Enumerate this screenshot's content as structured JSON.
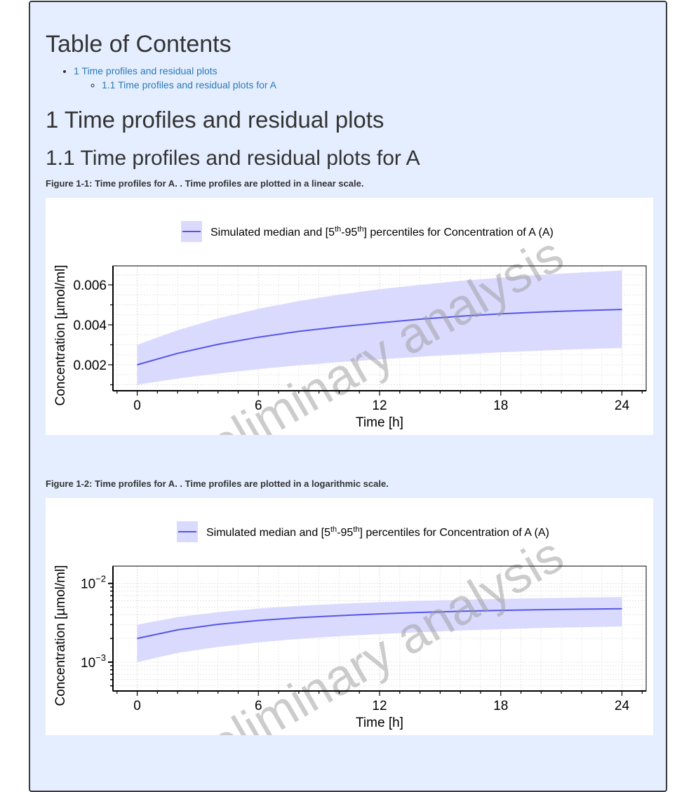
{
  "toc": {
    "title": "Table of Contents",
    "items": [
      {
        "label": "1 Time profiles and residual plots",
        "children": [
          {
            "label": "1.1 Time profiles and residual plots for A"
          }
        ]
      }
    ]
  },
  "section": {
    "h1": "1 Time profiles and residual plots",
    "h2": "1.1 Time profiles and residual plots for A"
  },
  "figures": [
    {
      "caption": "Figure 1-1: Time profiles for A. . Time profiles are plotted in a linear scale."
    },
    {
      "caption": "Figure 1-2: Time profiles for A. . Time profiles are plotted in a logarithmic scale."
    }
  ],
  "watermark": "Preliminary analysis",
  "colors": {
    "line": "#5656e6",
    "band": "#dadaff",
    "background": "#e5eeff",
    "link": "#2a7ab8"
  },
  "chart_data": [
    {
      "type": "line",
      "scale": "linear",
      "xlabel": "Time [h]",
      "ylabel": "Concentration [µmol/ml]",
      "legend": {
        "text_main": "Simulated median and [5",
        "sup1": "th",
        "text_mid": "-95",
        "sup2": "th",
        "text_end": "] percentiles for Concentration of A (A)",
        "placement": "top-center"
      },
      "xlim": [
        -1.2,
        25.2
      ],
      "ylim": [
        0.0007,
        0.00695
      ],
      "xticks": [
        0,
        6,
        12,
        18,
        24
      ],
      "xtick_labels": [
        "0",
        "6",
        "12",
        "18",
        "24"
      ],
      "yticks": [
        0.002,
        0.004,
        0.006
      ],
      "ytick_labels": [
        "0.002",
        "0.004",
        "0.006"
      ],
      "grid": true,
      "x": [
        0,
        2,
        4,
        6,
        8,
        10,
        12,
        14,
        16,
        18,
        20,
        22,
        24
      ],
      "series": [
        {
          "name": "Simulated median and [5th-95th] percentiles for Concentration of A (A)",
          "median": [
            0.002,
            0.00257,
            0.00302,
            0.00338,
            0.00367,
            0.0039,
            0.0041,
            0.00428,
            0.00443,
            0.00455,
            0.00464,
            0.00471,
            0.00477
          ],
          "lower": [
            0.001,
            0.00131,
            0.00156,
            0.00178,
            0.00197,
            0.00213,
            0.00227,
            0.0024,
            0.00252,
            0.00262,
            0.00271,
            0.00278,
            0.00284
          ],
          "upper": [
            0.003,
            0.00373,
            0.00432,
            0.0048,
            0.00519,
            0.00551,
            0.00578,
            0.006,
            0.0062,
            0.00636,
            0.0065,
            0.00662,
            0.00672
          ]
        }
      ]
    },
    {
      "type": "line",
      "scale": "log",
      "xlabel": "Time [h]",
      "ylabel": "Concentration [µmol/ml]",
      "legend": {
        "text_main": "Simulated median and [5",
        "sup1": "th",
        "text_mid": "-95",
        "sup2": "th",
        "text_end": "] percentiles for Concentration of A (A)",
        "placement": "top-center"
      },
      "xlim": [
        -1.2,
        25.2
      ],
      "ylim": [
        0.00043,
        0.0166
      ],
      "xticks": [
        0,
        6,
        12,
        18,
        24
      ],
      "xtick_labels": [
        "0",
        "6",
        "12",
        "18",
        "24"
      ],
      "yticks": [
        0.001,
        0.01
      ],
      "ytick_labels": [
        {
          "base": "10",
          "exp": "−3"
        },
        {
          "base": "10",
          "exp": "−2"
        }
      ],
      "grid": true,
      "x": [
        0,
        2,
        4,
        6,
        8,
        10,
        12,
        14,
        16,
        18,
        20,
        22,
        24
      ],
      "series": [
        {
          "name": "Simulated median and [5th-95th] percentiles for Concentration of A (A)",
          "median": [
            0.002,
            0.00257,
            0.00302,
            0.00338,
            0.00367,
            0.0039,
            0.0041,
            0.00428,
            0.00443,
            0.00455,
            0.00464,
            0.00471,
            0.00477
          ],
          "lower": [
            0.001,
            0.00131,
            0.00156,
            0.00178,
            0.00197,
            0.00213,
            0.00227,
            0.0024,
            0.00252,
            0.00262,
            0.00271,
            0.00278,
            0.00284
          ],
          "upper": [
            0.003,
            0.00373,
            0.00432,
            0.0048,
            0.00519,
            0.00551,
            0.00578,
            0.006,
            0.0062,
            0.00636,
            0.0065,
            0.00662,
            0.00672
          ]
        }
      ]
    }
  ]
}
